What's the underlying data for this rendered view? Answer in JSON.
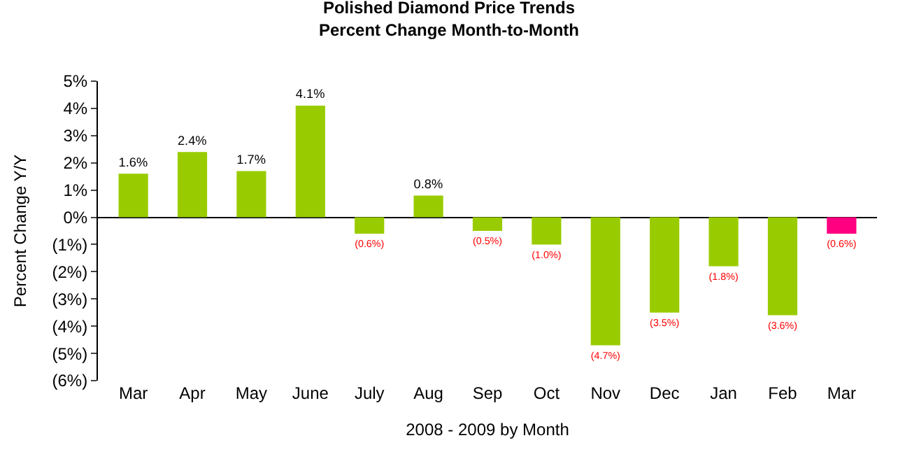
{
  "chart_data": {
    "type": "bar",
    "title": "Polished Diamond Price Trends",
    "subtitle": "Percent Change Month-to-Month",
    "xlabel": "2008 - 2009 by Month",
    "ylabel": "Percent Change Y/Y",
    "categories": [
      "Mar",
      "Apr",
      "May",
      "June",
      "July",
      "Aug",
      "Sep",
      "Oct",
      "Nov",
      "Dec",
      "Jan",
      "Feb",
      "Mar"
    ],
    "values": [
      1.6,
      2.4,
      1.7,
      4.1,
      -0.6,
      0.8,
      -0.5,
      -1.0,
      -4.7,
      -3.5,
      -1.8,
      -3.6,
      -0.6
    ],
    "colors": [
      "#99cc00",
      "#99cc00",
      "#99cc00",
      "#99cc00",
      "#99cc00",
      "#99cc00",
      "#99cc00",
      "#99cc00",
      "#99cc00",
      "#99cc00",
      "#99cc00",
      "#99cc00",
      "#ff0080"
    ],
    "value_labels": [
      "1.6%",
      "2.4%",
      "1.7%",
      "4.1%",
      "(0.6%)",
      "0.8%",
      "(0.5%)",
      "(1.0%)",
      "(4.7%)",
      "(3.5%)",
      "(1.8%)",
      "(3.6%)",
      "(0.6%)"
    ],
    "ylim": [
      -6,
      5
    ],
    "yticks": [
      {
        "value": -6,
        "label": "(6%)"
      },
      {
        "value": -5,
        "label": "(5%)"
      },
      {
        "value": -4,
        "label": "(4%)"
      },
      {
        "value": -3,
        "label": "(3%)"
      },
      {
        "value": -2,
        "label": "(2%)"
      },
      {
        "value": -1,
        "label": "(1%)"
      },
      {
        "value": 0,
        "label": "0%"
      },
      {
        "value": 1,
        "label": "1%"
      },
      {
        "value": 2,
        "label": "2%"
      },
      {
        "value": 3,
        "label": "3%"
      },
      {
        "value": 4,
        "label": "4%"
      },
      {
        "value": 5,
        "label": "5%"
      }
    ],
    "legend": false
  }
}
